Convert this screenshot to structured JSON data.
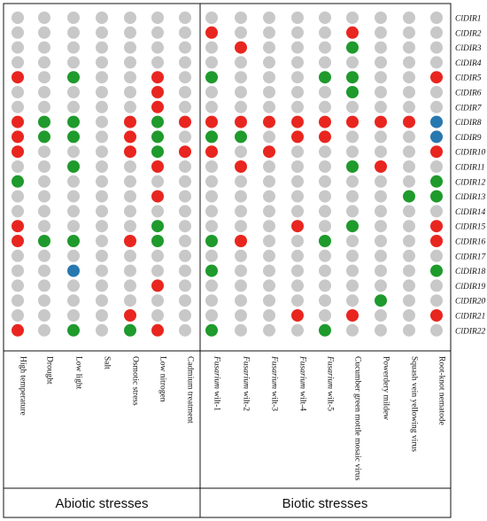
{
  "colors": {
    "up": "#e8261f",
    "down": "#1f9a2c",
    "other": "#2878b0",
    "none": "#c8c8c8"
  },
  "chart_data": {
    "type": "heatmap",
    "genes": [
      "ClDIR1",
      "ClDIR2",
      "ClDIR3",
      "ClDIR4",
      "ClDIR5",
      "ClDIR6",
      "ClDIR7",
      "ClDIR8",
      "ClDIR9",
      "ClDIR10",
      "ClDIR11",
      "ClDIR12",
      "ClDIR13",
      "ClDIR14",
      "ClDIR15",
      "ClDIR16",
      "ClDIR17",
      "ClDIR18",
      "ClDIR19",
      "ClDIR20",
      "ClDIR21",
      "ClDIR22"
    ],
    "groups": [
      {
        "name": "Abiotic stresses",
        "conditions": [
          {
            "pre": "",
            "italic": "",
            "post": "High temperature"
          },
          {
            "pre": "",
            "italic": "",
            "post": "Drought"
          },
          {
            "pre": "",
            "italic": "",
            "post": "Low light"
          },
          {
            "pre": "",
            "italic": "",
            "post": "Salt"
          },
          {
            "pre": "",
            "italic": "",
            "post": "Osmotic stress"
          },
          {
            "pre": "",
            "italic": "",
            "post": "Low nitrogen"
          },
          {
            "pre": "",
            "italic": "",
            "post": "Cadmium treatment"
          }
        ]
      },
      {
        "name": "Biotic stresses",
        "conditions": [
          {
            "pre": "",
            "italic": "Fusarium",
            "post": " wilt-1"
          },
          {
            "pre": "",
            "italic": "Fusarium",
            "post": " wilt-2"
          },
          {
            "pre": "",
            "italic": "Fusarium",
            "post": " wilt-3"
          },
          {
            "pre": "",
            "italic": "Fusarium",
            "post": " wilt-4"
          },
          {
            "pre": "",
            "italic": "Fusarium",
            "post": " wilt-5"
          },
          {
            "pre": "",
            "italic": "",
            "post": "Cucumber green mottle mosaic virus"
          },
          {
            "pre": "",
            "italic": "",
            "post": "Powerdery mildew"
          },
          {
            "pre": "",
            "italic": "",
            "post": "Squash vein yellowing virus"
          },
          {
            "pre": "",
            "italic": "",
            "post": "Root-knot nematode"
          }
        ]
      }
    ],
    "legend_note": "r = red, g = green, b = blue, . = grey; one string per gene, one character per condition (16 conditions)",
    "matrix": [
      "................",
      ".......r....r...",
      "........r...g...",
      "................",
      "r.g..r.g...gg..r",
      ".....r......g...",
      ".....r..........",
      "rgg.rgrrrrrrrrrb",
      "rgg.rg.gg.rr...b",
      "r...rgrr.r.....r",
      "..g..r..r...gr..",
      "g..............g",
      ".....r........gg",
      "................",
      "r....g....r.g..r",
      "rgg.rg.gr..g...r",
      "................",
      "..b....g.......g",
      ".....r..........",
      ".............g..",
      "....r.....r.r..r",
      "r.g.gr.g...g...."
    ]
  }
}
